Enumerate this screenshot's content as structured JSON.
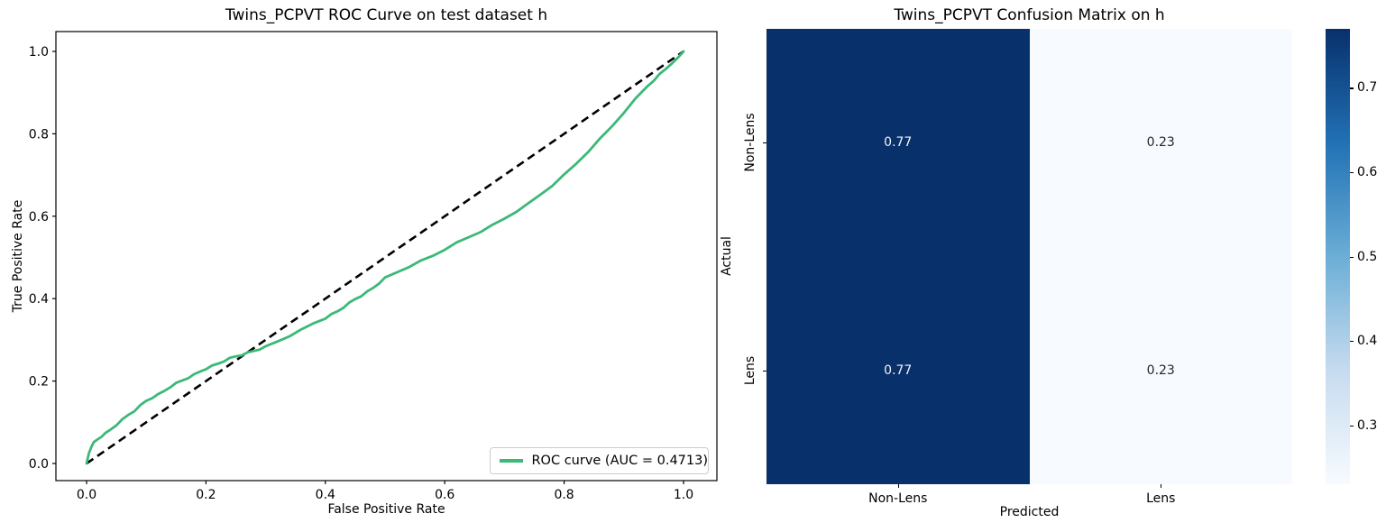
{
  "figure_background": "#ffffff",
  "chart_data": [
    {
      "type": "line",
      "title": "Twins_PCPVT ROC Curve on test dataset h",
      "xlabel": "False Positive Rate",
      "ylabel": "True Positive Rate",
      "xlim": [
        -0.05,
        1.05
      ],
      "ylim": [
        -0.05,
        1.05
      ],
      "xticks": [
        0.0,
        0.2,
        0.4,
        0.6,
        0.8,
        1.0
      ],
      "yticks": [
        0.0,
        0.2,
        0.4,
        0.6,
        0.8,
        1.0
      ],
      "grid": false,
      "legend_position": "lower right",
      "series": [
        {
          "name": "ROC curve (AUC = 0.4713)",
          "color": "#3cb878",
          "style": "solid",
          "linewidth": 2.8,
          "x": [
            0,
            0.004,
            0.008,
            0.012,
            0.018,
            0.025,
            0.032,
            0.04,
            0.05,
            0.06,
            0.07,
            0.08,
            0.09,
            0.1,
            0.11,
            0.12,
            0.13,
            0.14,
            0.15,
            0.16,
            0.17,
            0.18,
            0.19,
            0.2,
            0.21,
            0.22,
            0.23,
            0.24,
            0.25,
            0.26,
            0.27,
            0.28,
            0.29,
            0.3,
            0.32,
            0.34,
            0.36,
            0.38,
            0.4,
            0.41,
            0.42,
            0.43,
            0.44,
            0.45,
            0.46,
            0.47,
            0.48,
            0.49,
            0.5,
            0.52,
            0.54,
            0.56,
            0.58,
            0.6,
            0.62,
            0.64,
            0.66,
            0.68,
            0.7,
            0.72,
            0.74,
            0.76,
            0.78,
            0.8,
            0.82,
            0.84,
            0.86,
            0.88,
            0.9,
            0.92,
            0.94,
            0.95,
            0.96,
            0.97,
            0.98,
            0.99,
            1
          ],
          "y": [
            0,
            0.025,
            0.04,
            0.05,
            0.058,
            0.066,
            0.073,
            0.082,
            0.094,
            0.106,
            0.118,
            0.128,
            0.14,
            0.152,
            0.16,
            0.167,
            0.176,
            0.186,
            0.194,
            0.201,
            0.208,
            0.215,
            0.223,
            0.23,
            0.236,
            0.242,
            0.249,
            0.255,
            0.26,
            0.264,
            0.268,
            0.273,
            0.278,
            0.283,
            0.296,
            0.31,
            0.324,
            0.34,
            0.353,
            0.361,
            0.369,
            0.379,
            0.389,
            0.399,
            0.407,
            0.416,
            0.426,
            0.438,
            0.45,
            0.464,
            0.478,
            0.491,
            0.504,
            0.52,
            0.535,
            0.549,
            0.563,
            0.578,
            0.594,
            0.612,
            0.63,
            0.652,
            0.675,
            0.7,
            0.727,
            0.757,
            0.787,
            0.818,
            0.852,
            0.885,
            0.916,
            0.93,
            0.944,
            0.957,
            0.97,
            0.984,
            1
          ]
        },
        {
          "name": "chance diagonal",
          "color": "#000000",
          "style": "dashed",
          "linewidth": 2.6,
          "x": [
            0,
            1
          ],
          "y": [
            0,
            1
          ]
        }
      ]
    },
    {
      "type": "heatmap",
      "title": "Twins_PCPVT Confusion Matrix on h",
      "xlabel": "Predicted",
      "ylabel": "Actual",
      "x_categories": [
        "Non-Lens",
        "Lens"
      ],
      "y_categories": [
        "Non-Lens",
        "Lens"
      ],
      "values": [
        [
          0.77,
          0.23
        ],
        [
          0.77,
          0.23
        ]
      ],
      "value_format_decimals": 2,
      "colormap": "Blues",
      "colormap_stops": [
        "#f7fbff",
        "#c6dbef",
        "#6baed6",
        "#2171b5",
        "#08306b"
      ],
      "vmin": 0.23,
      "vmax": 0.77,
      "colorbar_ticks": [
        0.3,
        0.4,
        0.5,
        0.6,
        0.7
      ],
      "annotation_color_dark_cell": "#f2f2f2",
      "annotation_color_light_cell": "#262626"
    }
  ]
}
